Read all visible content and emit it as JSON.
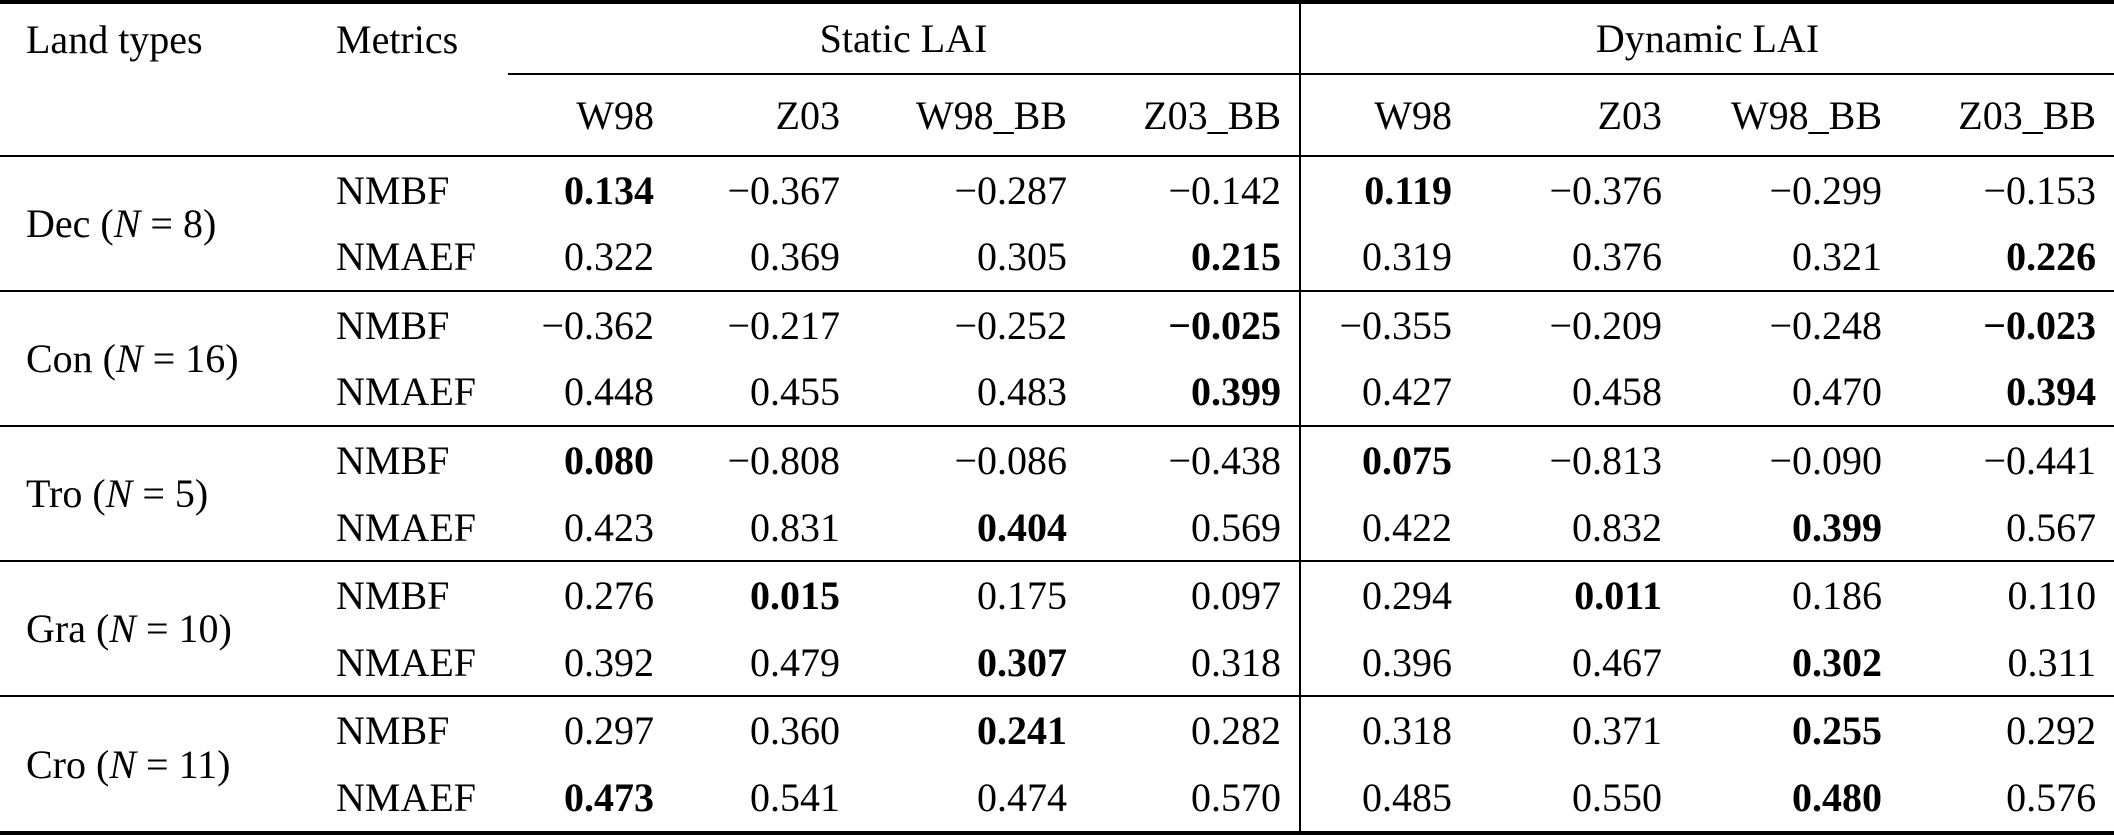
{
  "page": {
    "background_color": "#ffffff",
    "text_color": "#000000",
    "rule_color": "#000000"
  },
  "chart_data": {
    "type": "table",
    "header": {
      "land_types": "Land types",
      "metrics": "Metrics",
      "group_labels": [
        "Static LAI",
        "Dynamic LAI"
      ],
      "column_labels": [
        "W98",
        "Z03",
        "W98_BB",
        "Z03_BB"
      ]
    },
    "groups": [
      {
        "land": {
          "pre": "Dec (",
          "n": "N",
          "post": " = 8)"
        },
        "rows": [
          {
            "metric": "NMBF",
            "values": [
              {
                "v": "0.134",
                "b": true
              },
              {
                "v": "−0.367"
              },
              {
                "v": "−0.287"
              },
              {
                "v": "−0.142"
              },
              {
                "v": "0.119",
                "b": true
              },
              {
                "v": "−0.376"
              },
              {
                "v": "−0.299"
              },
              {
                "v": "−0.153"
              }
            ]
          },
          {
            "metric": "NMAEF",
            "values": [
              {
                "v": "0.322"
              },
              {
                "v": "0.369"
              },
              {
                "v": "0.305"
              },
              {
                "v": "0.215",
                "b": true
              },
              {
                "v": "0.319"
              },
              {
                "v": "0.376"
              },
              {
                "v": "0.321"
              },
              {
                "v": "0.226",
                "b": true
              }
            ]
          }
        ]
      },
      {
        "land": {
          "pre": "Con (",
          "n": "N",
          "post": " = 16)"
        },
        "rows": [
          {
            "metric": "NMBF",
            "values": [
              {
                "v": "−0.362"
              },
              {
                "v": "−0.217"
              },
              {
                "v": "−0.252"
              },
              {
                "v": "−0.025",
                "b": true
              },
              {
                "v": "−0.355"
              },
              {
                "v": "−0.209"
              },
              {
                "v": "−0.248"
              },
              {
                "v": "−0.023",
                "b": true
              }
            ]
          },
          {
            "metric": "NMAEF",
            "values": [
              {
                "v": "0.448"
              },
              {
                "v": "0.455"
              },
              {
                "v": "0.483"
              },
              {
                "v": "0.399",
                "b": true
              },
              {
                "v": "0.427"
              },
              {
                "v": "0.458"
              },
              {
                "v": "0.470"
              },
              {
                "v": "0.394",
                "b": true
              }
            ]
          }
        ]
      },
      {
        "land": {
          "pre": "Tro (",
          "n": "N",
          "post": " = 5)"
        },
        "rows": [
          {
            "metric": "NMBF",
            "values": [
              {
                "v": "0.080",
                "b": true
              },
              {
                "v": "−0.808"
              },
              {
                "v": "−0.086"
              },
              {
                "v": "−0.438"
              },
              {
                "v": "0.075",
                "b": true
              },
              {
                "v": "−0.813"
              },
              {
                "v": "−0.090"
              },
              {
                "v": "−0.441"
              }
            ]
          },
          {
            "metric": "NMAEF",
            "values": [
              {
                "v": "0.423"
              },
              {
                "v": "0.831"
              },
              {
                "v": "0.404",
                "b": true
              },
              {
                "v": "0.569"
              },
              {
                "v": "0.422"
              },
              {
                "v": "0.832"
              },
              {
                "v": "0.399",
                "b": true
              },
              {
                "v": "0.567"
              }
            ]
          }
        ]
      },
      {
        "land": {
          "pre": "Gra (",
          "n": "N",
          "post": " = 10)"
        },
        "rows": [
          {
            "metric": "NMBF",
            "values": [
              {
                "v": "0.276"
              },
              {
                "v": "0.015",
                "b": true
              },
              {
                "v": "0.175"
              },
              {
                "v": "0.097"
              },
              {
                "v": "0.294"
              },
              {
                "v": "0.011",
                "b": true
              },
              {
                "v": "0.186"
              },
              {
                "v": "0.110"
              }
            ]
          },
          {
            "metric": "NMAEF",
            "values": [
              {
                "v": "0.392"
              },
              {
                "v": "0.479"
              },
              {
                "v": "0.307",
                "b": true
              },
              {
                "v": "0.318"
              },
              {
                "v": "0.396"
              },
              {
                "v": "0.467"
              },
              {
                "v": "0.302",
                "b": true
              },
              {
                "v": "0.311"
              }
            ]
          }
        ]
      },
      {
        "land": {
          "pre": "Cro (",
          "n": "N",
          "post": " = 11)"
        },
        "rows": [
          {
            "metric": "NMBF",
            "values": [
              {
                "v": "0.297"
              },
              {
                "v": "0.360"
              },
              {
                "v": "0.241",
                "b": true
              },
              {
                "v": "0.282"
              },
              {
                "v": "0.318"
              },
              {
                "v": "0.371"
              },
              {
                "v": "0.255",
                "b": true
              },
              {
                "v": "0.292"
              }
            ]
          },
          {
            "metric": "NMAEF",
            "values": [
              {
                "v": "0.473",
                "b": true
              },
              {
                "v": "0.541"
              },
              {
                "v": "0.474"
              },
              {
                "v": "0.570"
              },
              {
                "v": "0.485"
              },
              {
                "v": "0.550"
              },
              {
                "v": "0.480",
                "b": true
              },
              {
                "v": "0.576"
              }
            ]
          }
        ]
      }
    ]
  }
}
